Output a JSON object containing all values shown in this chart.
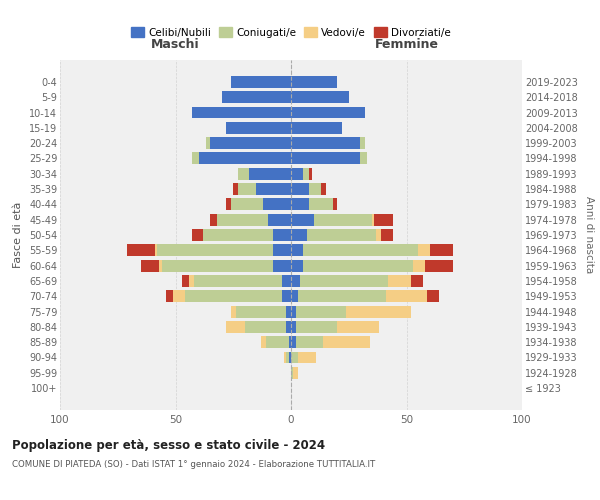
{
  "age_groups": [
    "100+",
    "95-99",
    "90-94",
    "85-89",
    "80-84",
    "75-79",
    "70-74",
    "65-69",
    "60-64",
    "55-59",
    "50-54",
    "45-49",
    "40-44",
    "35-39",
    "30-34",
    "25-29",
    "20-24",
    "15-19",
    "10-14",
    "5-9",
    "0-4"
  ],
  "birth_years": [
    "≤ 1923",
    "1924-1928",
    "1929-1933",
    "1934-1938",
    "1939-1943",
    "1944-1948",
    "1949-1953",
    "1954-1958",
    "1959-1963",
    "1964-1968",
    "1969-1973",
    "1974-1978",
    "1979-1983",
    "1984-1988",
    "1989-1993",
    "1994-1998",
    "1999-2003",
    "2004-2008",
    "2009-2013",
    "2014-2018",
    "2019-2023"
  ],
  "colors": {
    "celibi": "#4472C4",
    "coniugati": "#BECE95",
    "vedovi": "#F5CE85",
    "divorziati": "#C0392B"
  },
  "maschi_celibi": [
    0,
    0,
    1,
    1,
    2,
    2,
    4,
    4,
    8,
    8,
    8,
    10,
    12,
    15,
    18,
    40,
    35,
    28,
    43,
    30,
    26
  ],
  "maschi_coniugati": [
    0,
    0,
    1,
    10,
    18,
    22,
    42,
    38,
    48,
    50,
    30,
    22,
    14,
    8,
    5,
    3,
    2,
    0,
    0,
    0,
    0
  ],
  "maschi_vedovi": [
    0,
    0,
    1,
    2,
    8,
    2,
    5,
    2,
    1,
    1,
    0,
    0,
    0,
    0,
    0,
    0,
    0,
    0,
    0,
    0,
    0
  ],
  "maschi_divorziati": [
    0,
    0,
    0,
    0,
    0,
    0,
    3,
    3,
    8,
    12,
    5,
    3,
    2,
    2,
    0,
    0,
    0,
    0,
    0,
    0,
    0
  ],
  "femmine_nubili": [
    0,
    0,
    0,
    2,
    2,
    2,
    3,
    4,
    5,
    5,
    7,
    10,
    8,
    8,
    5,
    30,
    30,
    22,
    32,
    25,
    20
  ],
  "femmine_coniugate": [
    0,
    1,
    3,
    12,
    18,
    22,
    38,
    38,
    48,
    50,
    30,
    25,
    10,
    5,
    3,
    3,
    2,
    0,
    0,
    0,
    0
  ],
  "femmine_vedove": [
    0,
    2,
    8,
    20,
    18,
    28,
    18,
    10,
    5,
    5,
    2,
    1,
    0,
    0,
    0,
    0,
    0,
    0,
    0,
    0,
    0
  ],
  "femmine_divorziate": [
    0,
    0,
    0,
    0,
    0,
    0,
    5,
    5,
    12,
    10,
    5,
    8,
    2,
    2,
    1,
    0,
    0,
    0,
    0,
    0,
    0
  ],
  "title": "Popolazione per età, sesso e stato civile - 2024",
  "subtitle": "COMUNE DI PIATEDA (SO) - Dati ISTAT 1° gennaio 2024 - Elaborazione TUTTITALIA.IT",
  "ylabel_left": "Fasce di età",
  "ylabel_right": "Anni di nascita",
  "header_left": "Maschi",
  "header_right": "Femmine",
  "legend_labels": [
    "Celibi/Nubili",
    "Coniugati/e",
    "Vedovi/e",
    "Divorziati/e"
  ],
  "xlim": 100,
  "bg_color": "#ffffff",
  "plot_bg": "#f0f0f0",
  "grid_color": "#cccccc"
}
